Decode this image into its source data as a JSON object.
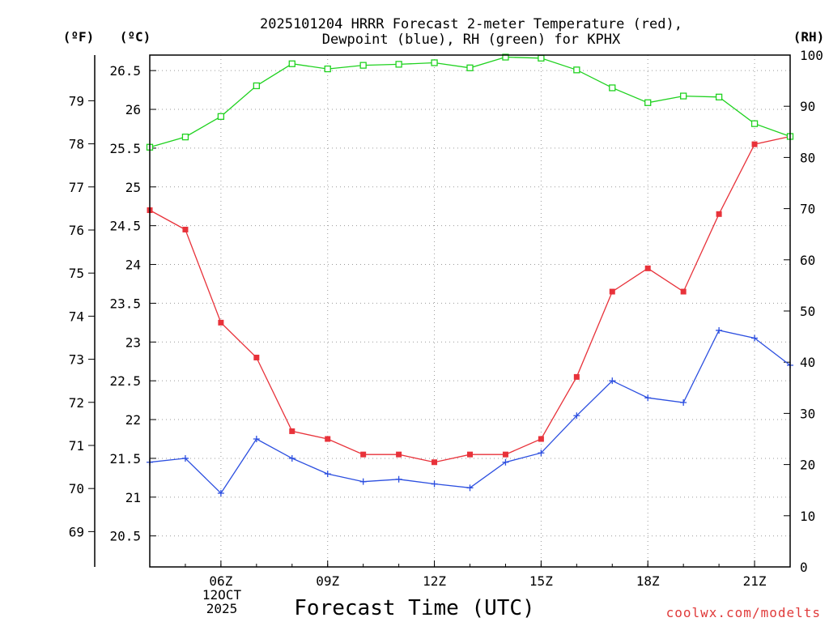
{
  "chart_data": {
    "type": "line",
    "title_line1": "2025101204 HRRR Forecast 2-meter Temperature (red),",
    "title_line2": "Dewpoint (blue), RH (green) for KPHX",
    "xlabel": "Forecast Time (UTC)",
    "credit": "coolwx.com/modelts",
    "units": {
      "fahrenheit": "(ºF)",
      "celsius": "(ºC)",
      "rh": "(RH)"
    },
    "x_range": [
      4,
      22
    ],
    "x_ticks": [
      {
        "hour": 6,
        "label": "06Z"
      },
      {
        "hour": 9,
        "label": "09Z"
      },
      {
        "hour": 12,
        "label": "12Z"
      },
      {
        "hour": 15,
        "label": "15Z"
      },
      {
        "hour": 18,
        "label": "18Z"
      },
      {
        "hour": 21,
        "label": "21Z"
      }
    ],
    "date_label_line1": "12OCT",
    "date_label_line2": "2025",
    "y_celsius": {
      "range": [
        20.1,
        26.7
      ],
      "ticks": [
        "20.5",
        "21",
        "21.5",
        "22",
        "22.5",
        "23",
        "23.5",
        "24",
        "24.5",
        "25",
        "25.5",
        "26",
        "26.5"
      ]
    },
    "y_fahrenheit": {
      "ticks": [
        "69",
        "70",
        "71",
        "72",
        "73",
        "74",
        "75",
        "76",
        "77",
        "78",
        "79"
      ]
    },
    "y_rh": {
      "range": [
        0,
        100
      ],
      "ticks": [
        "0",
        "10",
        "20",
        "30",
        "40",
        "50",
        "60",
        "70",
        "80",
        "90",
        "100"
      ]
    },
    "hours": [
      4,
      5,
      6,
      7,
      8,
      9,
      10,
      11,
      12,
      13,
      14,
      15,
      16,
      17,
      18,
      19,
      20,
      21,
      22
    ],
    "series": [
      {
        "name": "Temperature",
        "axis": "celsius",
        "color": "#e8323a",
        "marker": "filled-square",
        "values": [
          24.7,
          24.45,
          23.25,
          22.8,
          21.85,
          21.75,
          21.55,
          21.55,
          21.45,
          21.55,
          21.55,
          21.75,
          22.55,
          23.65,
          23.95,
          23.65,
          24.65,
          25.55,
          25.65
        ]
      },
      {
        "name": "Dewpoint",
        "axis": "celsius",
        "color": "#2c4fe0",
        "marker": "plus",
        "values": [
          21.45,
          21.5,
          21.05,
          21.75,
          21.5,
          21.3,
          21.2,
          21.23,
          21.17,
          21.12,
          21.45,
          21.57,
          22.05,
          22.5,
          22.28,
          22.22,
          23.15,
          23.05,
          22.7
        ]
      },
      {
        "name": "RH",
        "axis": "rh",
        "color": "#1fd21f",
        "marker": "open-square",
        "values": [
          82,
          84,
          88,
          94,
          98.3,
          97.3,
          98,
          98.2,
          98.5,
          97.5,
          99.6,
          99.4,
          97.1,
          93.6,
          90.7,
          92,
          91.8,
          86.6,
          84.1
        ]
      }
    ]
  }
}
